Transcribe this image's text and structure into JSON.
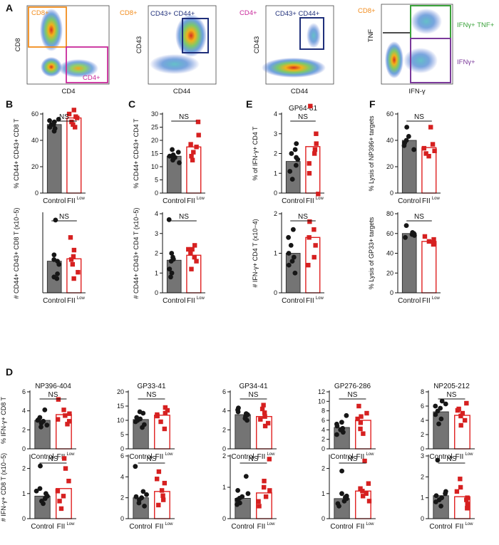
{
  "colors": {
    "control_bar": "#747474",
    "fii_bar_stroke": "#e02020",
    "fii_point": "#d62020",
    "control_point": "#161616",
    "cd8": "#f28c1c",
    "cd4": "#c8289a",
    "cd43cd44": "#1f2f7a",
    "ifng_tnf": "#3aa23a",
    "ifng": "#7b3a9b"
  },
  "flow": {
    "letter": "A",
    "plots": [
      {
        "xlabel": "CD4",
        "ylabel": "CD8",
        "gates": [
          "CD8+",
          "CD4+"
        ]
      },
      {
        "xlabel": "CD44",
        "ylabel": "CD43",
        "corner": "CD8+",
        "gates": [
          "CD43+ CD44+"
        ]
      },
      {
        "xlabel": "CD44",
        "ylabel": "CD43",
        "corner": "CD4+",
        "gates": [
          "CD43+ CD44+"
        ]
      },
      {
        "xlabel": "IFN-γ",
        "ylabel": "TNF",
        "corner": "CD8+",
        "gates": [
          "IFNγ+ TNF+",
          "IFNγ+"
        ]
      }
    ]
  },
  "chart_data": [
    {
      "type": "bar",
      "panel": "B",
      "title": "",
      "categories": [
        "Control",
        "FII"
      ],
      "cat_superscript": "Low",
      "ylabel": "% CD44+ CD43+ CD8 T",
      "ylim": [
        0,
        60
      ],
      "yticks": [
        0,
        20,
        40,
        60
      ],
      "annotation": "NS",
      "values": [
        52,
        57
      ],
      "points": [
        [
          47,
          49,
          50,
          52,
          52,
          54,
          55,
          56
        ],
        [
          50,
          52,
          54,
          57,
          58,
          60,
          63
        ]
      ]
    },
    {
      "type": "bar",
      "panel": "B",
      "title": "",
      "categories": [
        "Control",
        "FII"
      ],
      "cat_superscript": "Low",
      "ylabel": "# CD44+ CD43+ CD8 T (x10−5)",
      "ylim": [
        0,
        5
      ],
      "yticks": [],
      "annotation": "NS",
      "values": [
        2.0,
        2.15
      ],
      "points": [
        [
          0.9,
          1.0,
          1.2,
          1.8,
          2.0,
          2.1,
          2.4,
          4.6
        ],
        [
          0.9,
          1.3,
          1.8,
          2.1,
          2.3,
          2.7,
          3.5
        ]
      ]
    },
    {
      "type": "bar",
      "panel": "C",
      "title": "",
      "categories": [
        "Control",
        "FII"
      ],
      "cat_superscript": "Low",
      "ylabel": "% CD44+ CD43+ CD4 T",
      "ylim": [
        0,
        30
      ],
      "yticks": [
        0,
        5,
        10,
        15,
        20,
        25,
        30
      ],
      "annotation": "NS",
      "values": [
        14,
        17.5
      ],
      "points": [
        [
          11.5,
          12.5,
          13,
          13.5,
          14,
          14.5,
          15.5,
          16.5
        ],
        [
          12.5,
          14,
          15.5,
          17.5,
          18.5,
          22,
          27
        ]
      ]
    },
    {
      "type": "bar",
      "panel": "C",
      "title": "",
      "categories": [
        "Control",
        "FII"
      ],
      "cat_superscript": "Low",
      "ylabel": "# CD44+ CD43+ CD4 T (x10−5)",
      "ylim": [
        0,
        4
      ],
      "yticks": [
        0,
        1,
        2,
        3,
        4
      ],
      "annotation": "NS",
      "values": [
        1.65,
        1.9
      ],
      "points": [
        [
          0.8,
          1.0,
          1.2,
          1.6,
          1.7,
          1.8,
          2.0,
          3.7
        ],
        [
          1.2,
          1.6,
          1.8,
          2.0,
          2.2,
          2.2,
          2.4
        ]
      ]
    },
    {
      "type": "bar",
      "panel": "E",
      "title": "GP64-81",
      "categories": [
        "Control",
        "FII"
      ],
      "cat_superscript": "Low",
      "ylabel": "% of IFN-γ+ CD4 T",
      "ylim": [
        0,
        4
      ],
      "yticks": [
        0,
        1,
        2,
        3,
        4
      ],
      "annotation": "NS",
      "values": [
        1.6,
        2.35
      ],
      "points": [
        [
          0.7,
          1.1,
          1.4,
          1.7,
          1.8,
          2.0,
          2.2,
          2.5
        ],
        [
          1.0,
          1.5,
          2.0,
          2.2,
          2.5,
          3.0,
          4.4
        ]
      ]
    },
    {
      "type": "bar",
      "panel": "E",
      "title": "",
      "categories": [
        "Control",
        "FII"
      ],
      "cat_superscript": "Low",
      "ylabel": "# IFN-γ+ CD4 T (x10−4)",
      "ylim": [
        0,
        2
      ],
      "yticks": [
        0,
        1,
        2
      ],
      "annotation": "NS",
      "values": [
        1.0,
        1.4
      ],
      "points": [
        [
          0.5,
          0.7,
          0.8,
          0.9,
          1.0,
          1.2,
          1.4,
          1.6
        ],
        [
          0.7,
          0.9,
          1.2,
          1.4,
          1.6,
          1.8,
          2.5
        ]
      ]
    },
    {
      "type": "bar",
      "panel": "F",
      "title": "",
      "categories": [
        "Control",
        "FII"
      ],
      "cat_superscript": "Low",
      "ylabel": "% Lysis of NP396+ targets",
      "ylim": [
        0,
        60
      ],
      "yticks": [
        0,
        20,
        40,
        60
      ],
      "annotation": "NS",
      "values": [
        40,
        34.5
      ],
      "points": [
        [
          33,
          36,
          38,
          40,
          43,
          50
        ],
        [
          28,
          30,
          32,
          34,
          37,
          50
        ]
      ]
    },
    {
      "type": "bar",
      "panel": "F",
      "title": "",
      "categories": [
        "Control",
        "FII"
      ],
      "cat_superscript": "Low",
      "ylabel": "% Lysis of GP33+ targets",
      "ylim": [
        0,
        80
      ],
      "yticks": [
        0,
        20,
        40,
        60,
        80
      ],
      "annotation": "NS",
      "values": [
        60,
        52
      ],
      "points": [
        [
          56,
          58,
          59,
          60,
          61,
          68
        ],
        [
          49,
          50,
          51,
          52,
          54,
          57
        ]
      ]
    },
    {
      "type": "bar",
      "panel": "D",
      "title": "NP396-404",
      "categories": [
        "Control",
        "FII"
      ],
      "cat_superscript": "Low",
      "ylabel": "% IFN-γ+ CD8 T",
      "ylim": [
        0,
        6
      ],
      "yticks": [
        0,
        2,
        4,
        6
      ],
      "annotation": "NS",
      "values": [
        3.0,
        3.6
      ],
      "points": [
        [
          2.3,
          2.5,
          2.7,
          2.9,
          3.0,
          3.1,
          3.3,
          4.1
        ],
        [
          2.6,
          2.9,
          3.1,
          3.5,
          3.7,
          4.1,
          5.2
        ]
      ]
    },
    {
      "type": "bar",
      "panel": "D",
      "title": "GP33-41",
      "categories": [
        "Control",
        "FII"
      ],
      "cat_superscript": "Low",
      "ylabel": "",
      "ylim": [
        0,
        20
      ],
      "yticks": [
        0,
        5,
        10,
        15,
        20
      ],
      "annotation": "NS",
      "values": [
        10.3,
        11.8
      ],
      "points": [
        [
          7.5,
          8.5,
          9.5,
          10,
          10.5,
          11,
          12.5,
          13
        ],
        [
          7,
          9.5,
          11.5,
          12,
          12.5,
          13.5,
          14.5
        ]
      ]
    },
    {
      "type": "bar",
      "panel": "D",
      "title": "GP34-41",
      "categories": [
        "Control",
        "FII"
      ],
      "cat_superscript": "Low",
      "ylabel": "",
      "ylim": [
        0,
        6
      ],
      "yticks": [
        0,
        2,
        4,
        6
      ],
      "annotation": "NS",
      "values": [
        3.6,
        3.4
      ],
      "points": [
        [
          3.0,
          3.2,
          3.4,
          3.6,
          3.7,
          3.9,
          4.1,
          4.3
        ],
        [
          2.4,
          2.7,
          3.1,
          3.4,
          3.8,
          4.2,
          4.6
        ]
      ]
    },
    {
      "type": "bar",
      "panel": "D",
      "title": "GP276-286",
      "categories": [
        "Control",
        "FII"
      ],
      "cat_superscript": "Low",
      "ylabel": "",
      "ylim": [
        0,
        12
      ],
      "yticks": [
        0,
        2,
        4,
        6,
        8,
        10,
        12
      ],
      "annotation": "NS",
      "values": [
        4.5,
        6.0
      ],
      "points": [
        [
          3.0,
          3.5,
          4.0,
          4.3,
          4.8,
          5.2,
          5.6,
          7.0
        ],
        [
          3.2,
          4.2,
          5.5,
          6.3,
          6.8,
          7.5,
          9.0
        ]
      ]
    },
    {
      "type": "bar",
      "panel": "D",
      "title": "NP205-212",
      "categories": [
        "Control",
        "FII"
      ],
      "cat_superscript": "Low",
      "ylabel": "",
      "ylim": [
        0,
        8
      ],
      "yticks": [
        0,
        2,
        4,
        6,
        8
      ],
      "annotation": "NS",
      "values": [
        5.2,
        4.7
      ],
      "points": [
        [
          3.5,
          4.2,
          4.8,
          5.3,
          5.7,
          6.0,
          6.3,
          6.7
        ],
        [
          3.3,
          4.0,
          4.6,
          5.0,
          5.4,
          5.6,
          6.4
        ]
      ]
    },
    {
      "type": "bar",
      "panel": "D",
      "title": "",
      "categories": [
        "Control",
        "FII"
      ],
      "cat_superscript": "Low",
      "ylabel": "# IFN-γ+ CD8 T (x10−5)",
      "ylim": [
        0,
        2.5
      ],
      "yticks": [
        0,
        1,
        2
      ],
      "annotation": "NS",
      "values": [
        0.9,
        1.2
      ],
      "points": [
        [
          0.6,
          0.7,
          0.8,
          0.9,
          1.0,
          1.1,
          1.2,
          2.1
        ],
        [
          0.4,
          0.7,
          0.9,
          1.1,
          1.5,
          2.0,
          2.4
        ]
      ]
    },
    {
      "type": "bar",
      "panel": "D",
      "title": "",
      "categories": [
        "Control",
        "FII"
      ],
      "cat_superscript": "Low",
      "ylabel": "",
      "ylim": [
        0,
        6
      ],
      "yticks": [
        0,
        2,
        4,
        6
      ],
      "annotation": "NS",
      "values": [
        2.0,
        2.6
      ],
      "points": [
        [
          1.2,
          1.5,
          1.8,
          2.0,
          2.1,
          2.3,
          2.6,
          5.0
        ],
        [
          1.3,
          1.8,
          2.2,
          2.7,
          3.4,
          3.8,
          4.5
        ]
      ]
    },
    {
      "type": "bar",
      "panel": "D",
      "title": "",
      "categories": [
        "Control",
        "FII"
      ],
      "cat_superscript": "Low",
      "ylabel": "",
      "ylim": [
        0,
        2
      ],
      "yticks": [
        0,
        1,
        2
      ],
      "annotation": "NS",
      "values": [
        0.65,
        0.82
      ],
      "points": [
        [
          0.45,
          0.5,
          0.6,
          0.65,
          0.7,
          0.8,
          0.9,
          1.35
        ],
        [
          0.4,
          0.55,
          0.7,
          0.9,
          1.0,
          1.2,
          1.9
        ]
      ]
    },
    {
      "type": "bar",
      "panel": "D",
      "title": "",
      "categories": [
        "Control",
        "FII"
      ],
      "cat_superscript": "Low",
      "ylabel": "",
      "ylim": [
        0,
        2.5
      ],
      "yticks": [
        0,
        1,
        2
      ],
      "annotation": "NS",
      "values": [
        0.8,
        1.1
      ],
      "points": [
        [
          0.5,
          0.6,
          0.7,
          0.8,
          0.85,
          0.9,
          1.0,
          1.9
        ],
        [
          0.7,
          0.9,
          1.0,
          1.1,
          1.2,
          1.4,
          2.3
        ]
      ]
    },
    {
      "type": "bar",
      "panel": "D",
      "title": "",
      "categories": [
        "Control",
        "FII"
      ],
      "cat_superscript": "Low",
      "ylabel": "",
      "ylim": [
        0,
        3
      ],
      "yticks": [
        0,
        1,
        2,
        3
      ],
      "annotation": "NS",
      "values": [
        1.1,
        1.05
      ],
      "points": [
        [
          0.6,
          0.8,
          0.9,
          1.0,
          1.1,
          1.2,
          1.3,
          2.8
        ],
        [
          0.5,
          0.7,
          0.9,
          1.0,
          1.3,
          1.5,
          1.9
        ]
      ]
    }
  ],
  "panel_letters": [
    "B",
    "C",
    "E",
    "F",
    "D"
  ]
}
